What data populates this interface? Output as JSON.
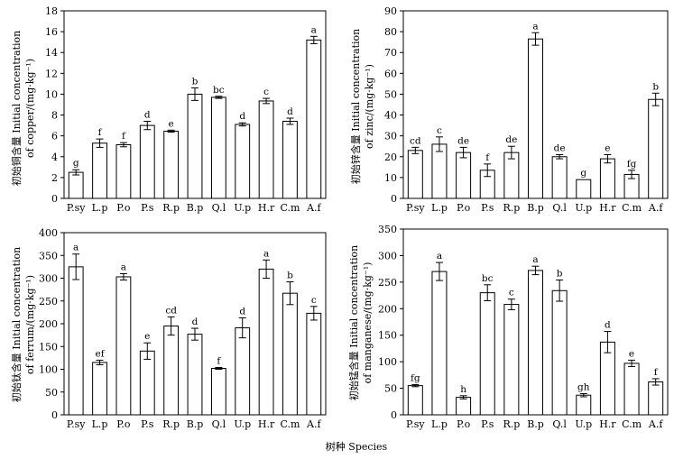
{
  "figure": {
    "xlabel": "树种 Species"
  },
  "chart_data": [
    {
      "type": "bar",
      "ylabel_line1": "初始铜含量 Initial concentration",
      "ylabel_line2": "of copper/(mg·kg⁻¹)",
      "ylim": [
        0,
        18
      ],
      "yticks": [
        0,
        2,
        4,
        6,
        8,
        10,
        12,
        14,
        16,
        18
      ],
      "categories": [
        "P.sy",
        "L.p",
        "P.o",
        "P.s",
        "R.p",
        "B.p",
        "Q.l",
        "U.p",
        "H.r",
        "C.m",
        "A.f"
      ],
      "values": [
        2.5,
        5.3,
        5.15,
        7.0,
        6.45,
        10.0,
        9.7,
        7.1,
        9.35,
        7.4,
        15.2
      ],
      "errors": [
        0.25,
        0.4,
        0.2,
        0.4,
        0.1,
        0.6,
        0.1,
        0.15,
        0.25,
        0.3,
        0.35
      ],
      "letters": [
        "g",
        "f",
        "f",
        "d",
        "e",
        "b",
        "bc",
        "d",
        "c",
        "d",
        "a"
      ]
    },
    {
      "type": "bar",
      "ylabel_line1": "初始锌含量 Initial concentration",
      "ylabel_line2": "of zinc/(mg·kg⁻¹)",
      "ylim": [
        0,
        90
      ],
      "yticks": [
        0,
        10,
        20,
        30,
        40,
        50,
        60,
        70,
        80,
        90
      ],
      "categories": [
        "P.sy",
        "L.p",
        "P.o",
        "P.s",
        "R.p",
        "B.p",
        "Q.l",
        "U.p",
        "H.r",
        "C.m",
        "A.f"
      ],
      "values": [
        23,
        26,
        22,
        13.5,
        22,
        76.5,
        20,
        9,
        19,
        11.5,
        47.5
      ],
      "errors": [
        1.5,
        3.5,
        2.5,
        3,
        3,
        3,
        1,
        0,
        2,
        2,
        3
      ],
      "letters": [
        "cd",
        "c",
        "de",
        "f",
        "de",
        "a",
        "de",
        "g",
        "e",
        "fg",
        "b"
      ]
    },
    {
      "type": "bar",
      "ylabel_line1": "初始钛含量 Initial concentration",
      "ylabel_line2": "of ferrum/(mg·kg⁻¹)",
      "ylim": [
        0,
        400
      ],
      "yticks": [
        0,
        50,
        100,
        150,
        200,
        250,
        300,
        350,
        400
      ],
      "categories": [
        "P.sy",
        "L.p",
        "P.o",
        "P.s",
        "R.p",
        "B.p",
        "Q.l",
        "U.p",
        "H.r",
        "C.m",
        "A.f"
      ],
      "values": [
        325,
        115,
        303,
        140,
        195,
        177,
        102,
        191,
        320,
        267,
        223
      ],
      "errors": [
        28,
        5,
        7,
        18,
        20,
        13,
        2,
        22,
        20,
        25,
        15
      ],
      "letters": [
        "a",
        "ef",
        "a",
        "e",
        "cd",
        "d",
        "f",
        "d",
        "a",
        "b",
        "c"
      ]
    },
    {
      "type": "bar",
      "ylabel_line1": "初始锰含量 Initial concentration",
      "ylabel_line2": "of manganese/(mg·kg⁻¹)",
      "ylim": [
        0,
        350
      ],
      "yticks": [
        0,
        50,
        100,
        150,
        200,
        250,
        300,
        350
      ],
      "categories": [
        "P.sy",
        "L.p",
        "P.o",
        "P.s",
        "R.p",
        "B.p",
        "Q.l",
        "U.p",
        "H.r",
        "C.m",
        "A.f"
      ],
      "values": [
        55,
        270,
        33,
        230,
        208,
        272,
        234,
        37,
        137,
        97,
        62
      ],
      "errors": [
        2,
        17,
        3,
        15,
        10,
        8,
        20,
        3,
        20,
        6,
        6
      ],
      "letters": [
        "fg",
        "a",
        "h",
        "bc",
        "c",
        "a",
        "b",
        "gh",
        "d",
        "e",
        "f"
      ]
    }
  ]
}
